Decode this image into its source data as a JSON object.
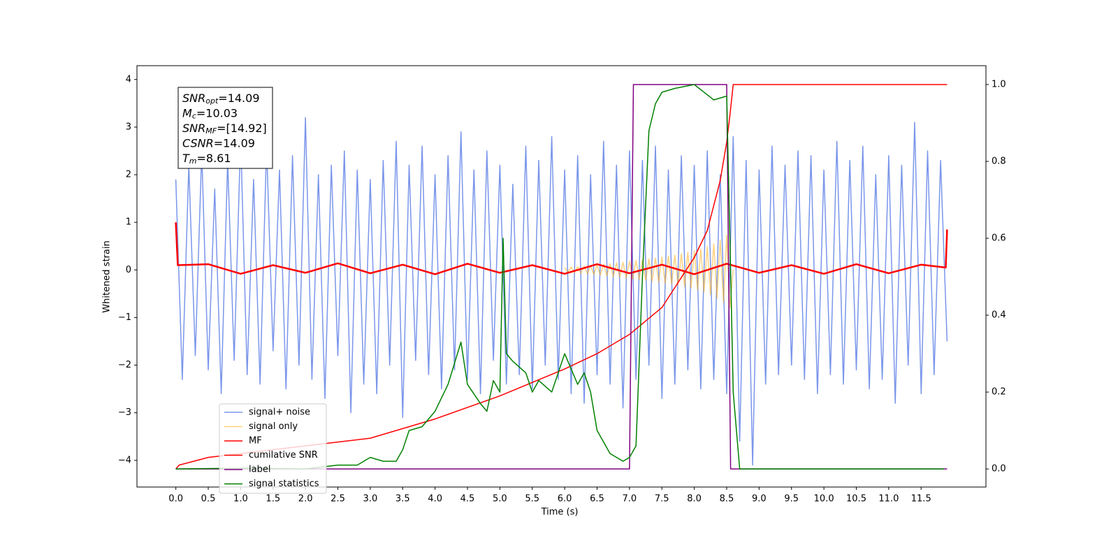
{
  "chart_data": {
    "type": "line",
    "xlabel": "Time (s)",
    "ylabel": "Whitened strain",
    "xlim": [
      -0.6,
      12.5
    ],
    "ylim": [
      -4.56,
      4.29
    ],
    "y2lim": [
      -0.047,
      1.049
    ],
    "xticks": [
      {
        "value": 0,
        "label": "0.0"
      },
      {
        "value": 0.5,
        "label": "0.5"
      },
      {
        "value": 1,
        "label": "1.0"
      },
      {
        "value": 1.5,
        "label": "1.5"
      },
      {
        "value": 2,
        "label": "2.0"
      },
      {
        "value": 2.5,
        "label": "2.5"
      },
      {
        "value": 3,
        "label": "3.0"
      },
      {
        "value": 3.5,
        "label": "3.5"
      },
      {
        "value": 4,
        "label": "4.0"
      },
      {
        "value": 4.5,
        "label": "4.5"
      },
      {
        "value": 5,
        "label": "5.0"
      },
      {
        "value": 5.5,
        "label": "5.5"
      },
      {
        "value": 6,
        "label": "6.0"
      },
      {
        "value": 6.5,
        "label": "6.5"
      },
      {
        "value": 7,
        "label": "7.0"
      },
      {
        "value": 7.5,
        "label": "7.5"
      },
      {
        "value": 8,
        "label": "8.0"
      },
      {
        "value": 8.5,
        "label": "8.5"
      },
      {
        "value": 9,
        "label": "9.0"
      },
      {
        "value": 9.5,
        "label": "9.5"
      },
      {
        "value": 10,
        "label": "10.0"
      },
      {
        "value": 10.5,
        "label": "10.5"
      },
      {
        "value": 11,
        "label": "11.0"
      },
      {
        "value": 11.5,
        "label": "11.5"
      }
    ],
    "yticks": [
      {
        "value": -4,
        "label": "−4"
      },
      {
        "value": -3,
        "label": "−3"
      },
      {
        "value": -2,
        "label": "−2"
      },
      {
        "value": -1,
        "label": "−1"
      },
      0,
      1,
      2,
      3,
      4
    ],
    "y2ticks": [
      {
        "value": 0,
        "label": "0.0"
      },
      {
        "value": 0.2,
        "label": "0.2"
      },
      {
        "value": 0.4,
        "label": "0.4"
      },
      {
        "value": 0.6,
        "label": "0.6"
      },
      {
        "value": 0.8,
        "label": "0.8"
      },
      {
        "value": 1,
        "label": "1.0"
      }
    ],
    "legend": "lower left",
    "annotation": [
      {
        "base": "SNR",
        "sub": "opt",
        "text": "=14.09"
      },
      {
        "base": "M",
        "sub": "c",
        "text": "=10.03"
      },
      {
        "base": "SNR",
        "sub": "MF",
        "text": "=[14.92]"
      },
      {
        "base": "CSNR",
        "text": "=14.09"
      },
      {
        "base": "T",
        "sub": "m",
        "text": "=8.61"
      }
    ],
    "series": [
      {
        "name": "signal+ noise",
        "color": "royalblue",
        "alpha": 0.7,
        "width": 1.5,
        "x": [
          0.0,
          0.1,
          0.2,
          0.3,
          0.4,
          0.5,
          0.6,
          0.7,
          0.8,
          0.9,
          1.0,
          1.1,
          1.2,
          1.3,
          1.4,
          1.5,
          1.6,
          1.7,
          1.8,
          1.9,
          2.0,
          2.1,
          2.2,
          2.3,
          2.4,
          2.5,
          2.6,
          2.7,
          2.8,
          2.9,
          3.0,
          3.1,
          3.2,
          3.3,
          3.4,
          3.5,
          3.6,
          3.7,
          3.8,
          3.9,
          4.0,
          4.1,
          4.2,
          4.3,
          4.4,
          4.5,
          4.6,
          4.7,
          4.8,
          4.9,
          5.0,
          5.1,
          5.2,
          5.3,
          5.4,
          5.5,
          5.6,
          5.7,
          5.8,
          5.9,
          6.0,
          6.1,
          6.2,
          6.3,
          6.4,
          6.5,
          6.6,
          6.7,
          6.8,
          6.9,
          7.0,
          7.1,
          7.2,
          7.3,
          7.4,
          7.5,
          7.6,
          7.7,
          7.8,
          7.9,
          8.0,
          8.1,
          8.2,
          8.3,
          8.4,
          8.5,
          8.6,
          8.7,
          8.8,
          8.9,
          9.0,
          9.1,
          9.2,
          9.3,
          9.4,
          9.5,
          9.6,
          9.7,
          9.8,
          9.9,
          10.0,
          10.1,
          10.2,
          10.3,
          10.4,
          10.5,
          10.6,
          10.7,
          10.8,
          10.9,
          11.0,
          11.1,
          11.2,
          11.3,
          11.4,
          11.5,
          11.6,
          11.7,
          11.8,
          11.9
        ],
        "values": [
          1.9,
          -2.3,
          2.2,
          -1.8,
          2.5,
          -2.1,
          1.7,
          -2.6,
          2.3,
          -1.9,
          2.8,
          -2.2,
          1.9,
          -2.4,
          2.6,
          -1.7,
          2.1,
          -2.5,
          2.4,
          -2.0,
          3.2,
          -2.3,
          2.0,
          -2.7,
          2.2,
          -1.8,
          2.5,
          -3.0,
          2.1,
          -2.4,
          1.9,
          -2.6,
          2.3,
          -2.0,
          2.7,
          -3.1,
          2.2,
          -1.9,
          2.6,
          -2.2,
          2.0,
          -2.5,
          2.4,
          -2.1,
          2.9,
          -2.3,
          2.1,
          -2.6,
          2.5,
          -1.9,
          2.2,
          -2.4,
          1.8,
          -2.2,
          2.6,
          -2.5,
          2.3,
          -2.0,
          2.8,
          -2.3,
          2.1,
          -2.6,
          2.4,
          -2.8,
          2.0,
          -2.2,
          2.7,
          -2.4,
          2.2,
          -2.9,
          2.5,
          -2.3,
          2.3,
          -2.0,
          2.6,
          -2.7,
          2.1,
          -2.4,
          2.4,
          -2.1,
          2.2,
          -2.5,
          2.5,
          -2.3,
          2.0,
          -2.6,
          2.8,
          -3.6,
          2.3,
          -4.1,
          2.1,
          -2.4,
          2.6,
          -2.2,
          2.2,
          -2.0,
          2.5,
          -2.3,
          2.4,
          -2.6,
          2.1,
          -2.2,
          2.7,
          -2.4,
          2.3,
          -2.1,
          2.6,
          -2.5,
          2.0,
          -2.3,
          2.4,
          -2.8,
          2.2,
          -2.0,
          3.1,
          -2.6,
          2.5,
          -2.2,
          2.3,
          -1.5
        ]
      },
      {
        "name": "signal only",
        "color": "orange",
        "alpha": 0.5,
        "width": 1.5,
        "x": [
          6.0,
          6.05,
          6.1,
          6.15,
          6.2,
          6.25,
          6.3,
          6.35,
          6.4,
          6.45,
          6.5,
          6.55,
          6.6,
          6.65,
          6.7,
          6.75,
          6.8,
          6.85,
          6.9,
          6.95,
          7.0,
          7.05,
          7.1,
          7.15,
          7.2,
          7.25,
          7.3,
          7.35,
          7.4,
          7.45,
          7.5,
          7.55,
          7.6,
          7.65,
          7.7,
          7.75,
          7.8,
          7.85,
          7.9,
          7.95,
          8.0,
          8.05,
          8.1,
          8.15,
          8.2,
          8.25,
          8.3,
          8.35,
          8.4,
          8.45,
          8.5,
          8.55,
          8.6
        ],
        "values": [
          0.05,
          -0.05,
          0.06,
          -0.06,
          0.07,
          -0.07,
          0.08,
          -0.08,
          0.09,
          -0.1,
          0.1,
          -0.11,
          0.12,
          -0.12,
          0.13,
          -0.14,
          0.15,
          -0.15,
          0.16,
          -0.17,
          0.18,
          -0.19,
          0.2,
          -0.2,
          0.21,
          -0.22,
          0.23,
          -0.24,
          0.25,
          -0.26,
          0.27,
          -0.28,
          0.29,
          -0.3,
          0.31,
          -0.32,
          0.34,
          -0.35,
          0.37,
          -0.38,
          0.4,
          -0.42,
          0.44,
          -0.46,
          0.49,
          -0.52,
          0.55,
          -0.59,
          0.63,
          -0.68,
          0.73,
          -0.8,
          0.0
        ]
      },
      {
        "name": "MF",
        "color": "red",
        "alpha": 1,
        "width": 2.5,
        "x": [
          0,
          0.03,
          0.5,
          1.0,
          1.5,
          2.0,
          2.5,
          3.0,
          3.5,
          4.0,
          4.5,
          5.0,
          5.5,
          6.0,
          6.5,
          7.0,
          7.5,
          8.0,
          8.5,
          9.0,
          9.5,
          10.0,
          10.5,
          11.0,
          11.5,
          11.88,
          11.9
        ],
        "values": [
          1.0,
          0.1,
          0.12,
          -0.08,
          0.1,
          -0.06,
          0.14,
          -0.07,
          0.11,
          -0.09,
          0.13,
          -0.06,
          0.1,
          -0.08,
          0.12,
          -0.07,
          0.11,
          -0.09,
          0.13,
          -0.06,
          0.1,
          -0.08,
          0.12,
          -0.07,
          0.11,
          0.05,
          0.85
        ]
      },
      {
        "name": "cumilative SNR",
        "color": "red",
        "alpha": 1,
        "width": 1.5,
        "axis": "y2",
        "x": [
          0,
          0.05,
          0.5,
          1,
          2,
          3,
          4,
          5,
          6,
          6.5,
          7,
          7.5,
          8,
          8.2,
          8.4,
          8.5,
          8.55,
          8.6,
          11.9
        ],
        "values": [
          0,
          0.01,
          0.03,
          0.04,
          0.06,
          0.08,
          0.13,
          0.19,
          0.26,
          0.3,
          0.35,
          0.42,
          0.55,
          0.62,
          0.75,
          0.85,
          0.92,
          1.0,
          1.0
        ]
      },
      {
        "name": "label",
        "color": "purple",
        "alpha": 1,
        "width": 1.5,
        "axis": "y2",
        "x": [
          0,
          7.0,
          7.06,
          8.5,
          8.56,
          11.9
        ],
        "values": [
          0,
          0,
          1,
          1,
          0,
          0
        ]
      },
      {
        "name": "signal statistics",
        "color": "green",
        "alpha": 1,
        "width": 1.5,
        "axis": "y2",
        "x": [
          0,
          1,
          2,
          2.5,
          2.8,
          3.0,
          3.2,
          3.4,
          3.5,
          3.6,
          3.8,
          4.0,
          4.2,
          4.4,
          4.5,
          4.7,
          4.8,
          4.9,
          5.0,
          5.05,
          5.1,
          5.2,
          5.4,
          5.5,
          5.6,
          5.8,
          6.0,
          6.2,
          6.3,
          6.4,
          6.5,
          6.7,
          6.9,
          7.0,
          7.1,
          7.2,
          7.3,
          7.4,
          7.5,
          7.7,
          8.0,
          8.3,
          8.5,
          8.55,
          8.6,
          8.7,
          11.85
        ],
        "values": [
          0,
          0.002,
          0,
          0.01,
          0.01,
          0.03,
          0.02,
          0.02,
          0.05,
          0.1,
          0.11,
          0.15,
          0.22,
          0.33,
          0.22,
          0.17,
          0.15,
          0.23,
          0.2,
          0.6,
          0.3,
          0.28,
          0.25,
          0.2,
          0.23,
          0.2,
          0.3,
          0.22,
          0.25,
          0.2,
          0.1,
          0.04,
          0.02,
          0.03,
          0.06,
          0.5,
          0.88,
          0.95,
          0.98,
          0.99,
          1.0,
          0.96,
          0.97,
          0.6,
          0.2,
          0,
          0
        ]
      }
    ]
  }
}
